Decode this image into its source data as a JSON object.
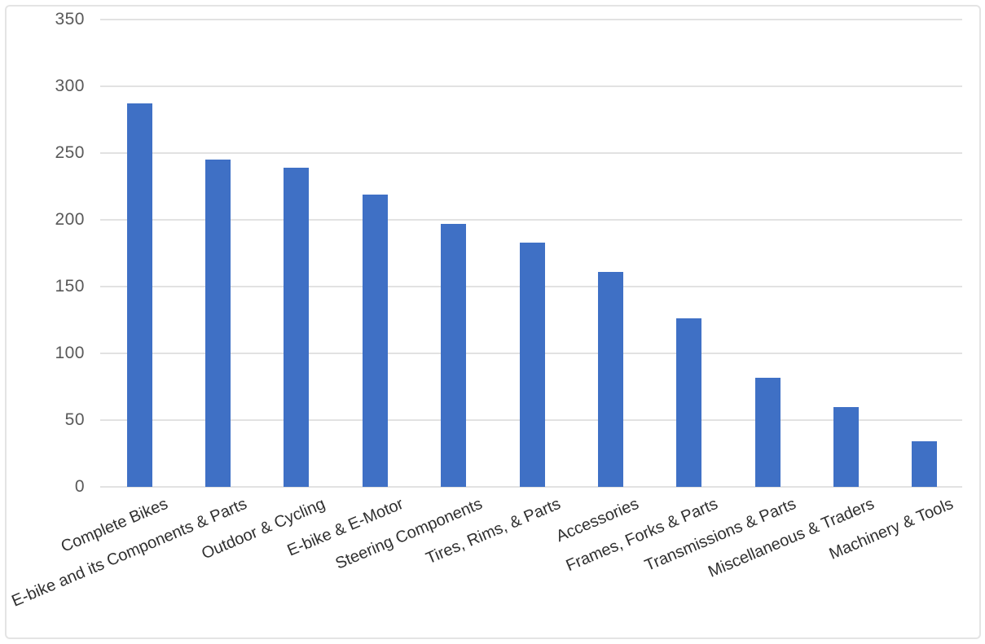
{
  "chart_data": {
    "type": "bar",
    "title": "",
    "xlabel": "",
    "ylabel": "",
    "categories": [
      "Complete Bikes",
      "E-bike and its Components & Parts",
      "Outdoor & Cycling",
      "E-bike & E-Motor",
      "Steering Components",
      "Tires, Rims, & Parts",
      "Accessories",
      "Frames, Forks & Parts",
      "Transmissions & Parts",
      "Miscellaneous & Traders",
      "Machinery & Tools"
    ],
    "values": [
      287,
      245,
      239,
      219,
      197,
      183,
      161,
      126,
      82,
      60,
      34
    ],
    "ylim": [
      0,
      350
    ],
    "yticks": [
      350,
      300,
      250,
      200,
      150,
      100,
      50,
      0
    ],
    "grid": "horizontal-only",
    "legend": "none",
    "colors": {
      "bar": "#3f70c5",
      "gridline": "#e2e2e2",
      "y_tick_label": "#595959",
      "category_label": "#303030",
      "background": "#ffffff",
      "border": "#e4e4e4"
    }
  }
}
